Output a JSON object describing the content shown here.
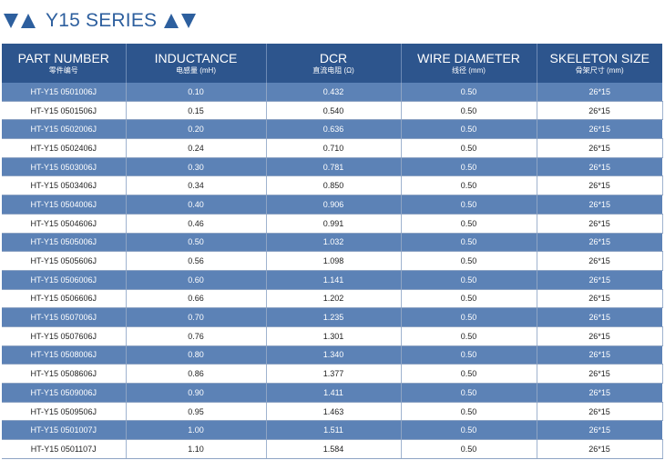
{
  "series": {
    "title": "Y15 SERIES",
    "left_icon": "double-triangle-icon",
    "right_icon": "double-triangle-icon",
    "accent_color": "#2d5f9e",
    "header_color": "#2d558d",
    "stripe_color": "#5c82b6"
  },
  "table": {
    "columns": [
      {
        "en": "PART NUMBER",
        "cn": "零件编号"
      },
      {
        "en": "INDUCTANCE",
        "cn": "电感量 (mH)"
      },
      {
        "en": "DCR",
        "cn": "直流电阻 (Ω)"
      },
      {
        "en": "WIRE DIAMETER",
        "cn": "线径 (mm)"
      },
      {
        "en": "SKELETON SIZE",
        "cn": "骨架尺寸 (mm)"
      }
    ],
    "rows": [
      [
        "HT-Y15 0501006J",
        "0.10",
        "0.432",
        "0.50",
        "26*15"
      ],
      [
        "HT-Y15 0501506J",
        "0.15",
        "0.540",
        "0.50",
        "26*15"
      ],
      [
        "HT-Y15 0502006J",
        "0.20",
        "0.636",
        "0.50",
        "26*15"
      ],
      [
        "HT-Y15 0502406J",
        "0.24",
        "0.710",
        "0.50",
        "26*15"
      ],
      [
        "HT-Y15 0503006J",
        "0.30",
        "0.781",
        "0.50",
        "26*15"
      ],
      [
        "HT-Y15 0503406J",
        "0.34",
        "0.850",
        "0.50",
        "26*15"
      ],
      [
        "HT-Y15 0504006J",
        "0.40",
        "0.906",
        "0.50",
        "26*15"
      ],
      [
        "HT-Y15 0504606J",
        "0.46",
        "0.991",
        "0.50",
        "26*15"
      ],
      [
        "HT-Y15 0505006J",
        "0.50",
        "1.032",
        "0.50",
        "26*15"
      ],
      [
        "HT-Y15 0505606J",
        "0.56",
        "1.098",
        "0.50",
        "26*15"
      ],
      [
        "HT-Y15 0506006J",
        "0.60",
        "1.141",
        "0.50",
        "26*15"
      ],
      [
        "HT-Y15 0506606J",
        "0.66",
        "1.202",
        "0.50",
        "26*15"
      ],
      [
        "HT-Y15 0507006J",
        "0.70",
        "1.235",
        "0.50",
        "26*15"
      ],
      [
        "HT-Y15 0507606J",
        "0.76",
        "1.301",
        "0.50",
        "26*15"
      ],
      [
        "HT-Y15 0508006J",
        "0.80",
        "1.340",
        "0.50",
        "26*15"
      ],
      [
        "HT-Y15 0508606J",
        "0.86",
        "1.377",
        "0.50",
        "26*15"
      ],
      [
        "HT-Y15 0509006J",
        "0.90",
        "1.411",
        "0.50",
        "26*15"
      ],
      [
        "HT-Y15 0509506J",
        "0.95",
        "1.463",
        "0.50",
        "26*15"
      ],
      [
        "HT-Y15 0501007J",
        "1.00",
        "1.511",
        "0.50",
        "26*15"
      ],
      [
        "HT-Y15 0501107J",
        "1.10",
        "1.584",
        "0.50",
        "26*15"
      ]
    ]
  }
}
